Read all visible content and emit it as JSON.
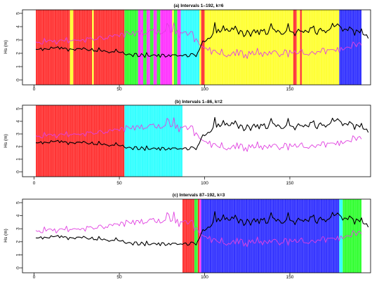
{
  "colors": {
    "red": "#ff3030",
    "yellow": "#ffff30",
    "green": "#30ff30",
    "magenta": "#ff30ff",
    "cyan": "#30ffff",
    "blue": "#3030ff",
    "black_series": "#000000",
    "magenta_series": "#e040e0"
  },
  "chart_data": [
    {
      "type": "line",
      "title": "(a) Intervals 1–192, k=6",
      "ylabel": "Hs (m)",
      "xlabel": "",
      "xlim": [
        1,
        192
      ],
      "ylim": [
        0,
        5
      ],
      "x_ticks": [
        0,
        50,
        100,
        150
      ],
      "y_ticks": [
        0,
        1,
        2,
        3,
        4,
        5
      ],
      "segments": [
        {
          "from": 1,
          "to": 21,
          "color": "red"
        },
        {
          "from": 21,
          "to": 23,
          "color": "yellow"
        },
        {
          "from": 23,
          "to": 34,
          "color": "red"
        },
        {
          "from": 34,
          "to": 35,
          "color": "yellow"
        },
        {
          "from": 35,
          "to": 53,
          "color": "red"
        },
        {
          "from": 53,
          "to": 61,
          "color": "green"
        },
        {
          "from": 61,
          "to": 64,
          "color": "magenta"
        },
        {
          "from": 64,
          "to": 66,
          "color": "green"
        },
        {
          "from": 66,
          "to": 68,
          "color": "magenta"
        },
        {
          "from": 68,
          "to": 70,
          "color": "green"
        },
        {
          "from": 70,
          "to": 72,
          "color": "magenta"
        },
        {
          "from": 72,
          "to": 74,
          "color": "green"
        },
        {
          "from": 74,
          "to": 81,
          "color": "magenta"
        },
        {
          "from": 81,
          "to": 82,
          "color": "yellow"
        },
        {
          "from": 82,
          "to": 84,
          "color": "green"
        },
        {
          "from": 84,
          "to": 86,
          "color": "magenta"
        },
        {
          "from": 86,
          "to": 97,
          "color": "cyan"
        },
        {
          "from": 97,
          "to": 98,
          "color": "yellow"
        },
        {
          "from": 98,
          "to": 100,
          "color": "red"
        },
        {
          "from": 100,
          "to": 152,
          "color": "yellow"
        },
        {
          "from": 152,
          "to": 154,
          "color": "red"
        },
        {
          "from": 154,
          "to": 156,
          "color": "yellow"
        },
        {
          "from": 156,
          "to": 157,
          "color": "red"
        },
        {
          "from": 157,
          "to": 179,
          "color": "yellow"
        },
        {
          "from": 179,
          "to": 192,
          "color": "blue"
        }
      ],
      "series": [
        {
          "color": "black_series",
          "values": [
            2.3,
            2.29,
            2.31,
            2.39,
            2.21,
            2.36,
            2.33,
            2.3,
            2.29,
            2.47,
            2.39,
            2.4,
            2.44,
            2.49,
            2.31,
            2.46,
            2.34,
            2.4,
            2.36,
            2.16,
            2.34,
            2.31,
            2.29,
            2.22,
            2.35,
            2.36,
            2.35,
            2.29,
            2.42,
            2.35,
            2.26,
            2.2,
            2.24,
            2.36,
            2.16,
            2.18,
            2.13,
            2.41,
            2.21,
            2.14,
            2.22,
            2.15,
            2.11,
            2.03,
            2.09,
            2.12,
            2.09,
            2.31,
            2.13,
            2.06,
            2.06,
            2.11,
            1.95,
            1.87,
            1.93,
            1.95,
            1.89,
            1.75,
            1.99,
            1.99,
            1.75,
            1.77,
            1.98,
            1.87,
            1.69,
            2.05,
            1.79,
            1.77,
            1.84,
            1.89,
            1.87,
            1.77,
            1.92,
            1.7,
            1.94,
            1.91,
            1.72,
            1.77,
            1.89,
            1.76,
            1.89,
            1.89,
            1.89,
            1.79,
            1.81,
            1.84,
            1.8,
            1.89,
            1.91,
            1.73,
            1.77,
            1.98,
            1.97,
            1.88,
            1.75,
            2.06,
            2.28,
            2.65,
            2.93,
            2.86,
            2.96,
            3.13,
            3.11,
            3.24,
            3.51,
            4.31,
            3.53,
            3.8,
            3.58,
            3.72,
            4.07,
            3.7,
            3.85,
            3.66,
            3.66,
            3.91,
            3.78,
            4.04,
            3.77,
            3.43,
            3.72,
            3.65,
            3.25,
            3.38,
            3.73,
            3.58,
            3.27,
            3.61,
            3.78,
            3.53,
            3.74,
            3.4,
            3.77,
            3.67,
            3.81,
            3.42,
            3.44,
            3.82,
            4.23,
            3.85,
            3.77,
            3.58,
            3.73,
            3.62,
            3.43,
            3.43,
            3.54,
            3.7,
            4.23,
            3.66,
            3.61,
            3.58,
            3.32,
            3.61,
            3.81,
            3.67,
            3.66,
            3.56,
            3.73,
            3.64,
            3.56,
            3.92,
            3.91,
            4.05,
            3.54,
            3.41,
            3.76,
            3.88,
            3.68,
            3.72,
            3.54,
            3.7,
            3.75,
            3.89,
            4.25,
            4.0,
            4.07,
            4.21,
            4.07,
            3.95,
            3.66,
            3.82,
            3.8,
            3.7,
            3.98,
            3.87,
            3.76,
            3.35,
            3.75,
            3.67,
            3.54,
            3.84,
            3.4,
            3.36,
            3.39,
            3.12
          ]
        },
        {
          "color": "magenta_series",
          "values": [
            2.87,
            2.79,
            2.84,
            2.7,
            2.69,
            3.14,
            2.82,
            2.94,
            2.99,
            2.97,
            2.84,
            3.0,
            2.67,
            2.85,
            2.99,
            3.01,
            2.96,
            2.91,
            3.2,
            2.77,
            2.95,
            2.94,
            3.0,
            3.01,
            2.96,
            3.0,
            2.91,
            3.02,
            3.02,
            2.81,
            3.19,
            3.12,
            3.17,
            3.09,
            2.97,
            3.04,
            3.04,
            3.26,
            3.28,
            3.15,
            3.0,
            3.15,
            3.08,
            3.33,
            3.33,
            3.23,
            3.4,
            3.37,
            3.37,
            3.23,
            3.52,
            3.48,
            3.17,
            3.66,
            3.57,
            3.45,
            3.4,
            3.66,
            3.3,
            3.64,
            3.63,
            3.42,
            3.73,
            3.36,
            3.46,
            3.46,
            3.63,
            3.75,
            3.73,
            3.8,
            3.53,
            3.46,
            3.75,
            3.44,
            3.48,
            3.6,
            3.66,
            4.24,
            4.1,
            3.56,
            3.62,
            4.29,
            3.43,
            3.73,
            3.16,
            3.56,
            3.51,
            3.61,
            3.63,
            3.34,
            3.47,
            3.65,
            3.61,
            2.85,
            3.1,
            2.92,
            2.64,
            2.57,
            2.48,
            2.41,
            2.38,
            2.22,
            2.44,
            1.92,
            2.24,
            2.24,
            2.08,
            1.98,
            1.9,
            2.32,
            1.89,
            1.82,
            1.73,
            1.89,
            1.8,
            1.99,
            2.12,
            1.82,
            2.3,
            1.83,
            2.21,
            2.16,
            1.66,
            1.92,
            1.61,
            2.15,
            1.92,
            2.16,
            1.88,
            1.94,
            2.38,
            1.89,
            2.06,
            1.75,
            2.1,
            2.0,
            1.85,
            2.15,
            1.93,
            2.14,
            2.2,
            2.14,
            1.94,
            1.75,
            1.92,
            1.9,
            2.27,
            2.2,
            1.72,
            2.23,
            2.02,
            2.03,
            2.22,
            1.95,
            1.99,
            2.19,
            2.3,
            1.95,
            1.92,
            1.92,
            1.85,
            2.01,
            2.14,
            2.02,
            1.92,
            2.13,
            2.14,
            2.07,
            2.38,
            2.37,
            1.94,
            2.28,
            2.26,
            2.28,
            2.28,
            2.26,
            2.14,
            2.44,
            2.07,
            2.46,
            2.23,
            2.32,
            2.45,
            2.47,
            2.43,
            2.37,
            2.86,
            2.73,
            2.48,
            2.75,
            2.8,
            2.59
          ]
        }
      ]
    },
    {
      "type": "line",
      "title": "(b) Intervals 1–86, k=2",
      "ylabel": "Hs (m)",
      "xlabel": "",
      "xlim": [
        1,
        192
      ],
      "ylim": [
        0,
        5
      ],
      "x_ticks": [
        0,
        50,
        100,
        150
      ],
      "y_ticks": [
        0,
        1,
        2,
        3,
        4,
        5
      ],
      "segments": [
        {
          "from": 1,
          "to": 53,
          "color": "red"
        },
        {
          "from": 53,
          "to": 87,
          "color": "cyan"
        }
      ],
      "series": [
        {
          "color": "black_series",
          "same_as_panel": 0,
          "series_index": 0
        },
        {
          "color": "magenta_series",
          "same_as_panel": 0,
          "series_index": 1
        }
      ]
    },
    {
      "type": "line",
      "title": "(c) Intervals 87–192, k=3",
      "ylabel": "Hs (m)",
      "xlabel": "",
      "xlim": [
        1,
        192
      ],
      "ylim": [
        0,
        5
      ],
      "x_ticks": [
        0,
        50,
        100,
        150
      ],
      "y_ticks": [
        0,
        1,
        2,
        3,
        4,
        5
      ],
      "segments": [
        {
          "from": 87,
          "to": 94,
          "color": "red"
        },
        {
          "from": 94,
          "to": 96,
          "color": "green"
        },
        {
          "from": 96,
          "to": 97,
          "color": "red"
        },
        {
          "from": 97,
          "to": 98,
          "color": "magenta"
        },
        {
          "from": 98,
          "to": 179,
          "color": "blue"
        },
        {
          "from": 179,
          "to": 181,
          "color": "cyan"
        },
        {
          "from": 181,
          "to": 192,
          "color": "green"
        }
      ],
      "series": [
        {
          "color": "black_series",
          "same_as_panel": 0,
          "series_index": 0
        },
        {
          "color": "magenta_series",
          "same_as_panel": 0,
          "series_index": 1
        }
      ]
    }
  ]
}
